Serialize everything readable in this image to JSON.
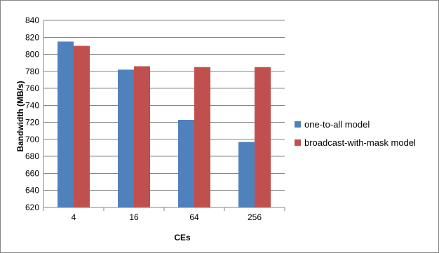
{
  "chart_data": {
    "type": "bar",
    "categories": [
      "4",
      "16",
      "64",
      "256"
    ],
    "series": [
      {
        "name": "one-to-all model",
        "color": "#4F81BD",
        "values": [
          815,
          782,
          723,
          697
        ]
      },
      {
        "name": "broadcast-with-mask model",
        "color": "#C0504D",
        "values": [
          810,
          786,
          785,
          785
        ]
      }
    ],
    "xlabel": "CEs",
    "ylabel": "Bandwidth (MB/s)",
    "ylim": [
      620,
      840
    ],
    "yticks": [
      620,
      640,
      660,
      680,
      700,
      720,
      740,
      760,
      780,
      800,
      820,
      840
    ],
    "grid": true,
    "legend_position": "right"
  }
}
